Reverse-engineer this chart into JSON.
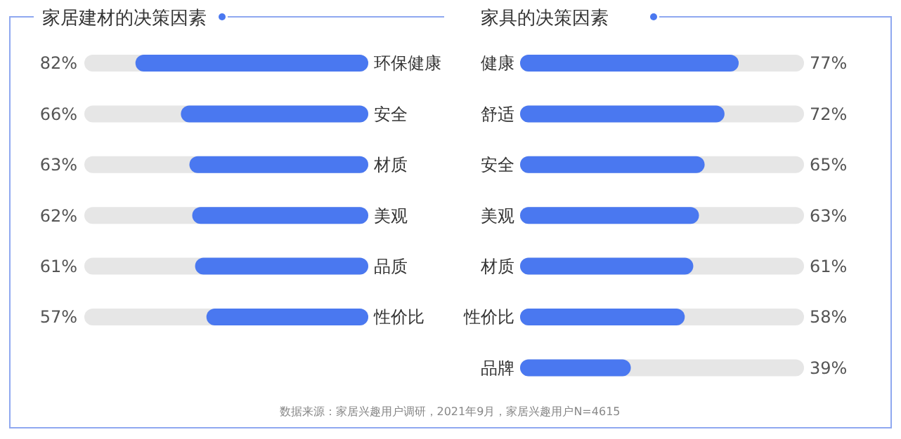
{
  "chart_data": [
    {
      "type": "bar",
      "orientation": "horizontal",
      "title": "家居建材的决策因素",
      "categories": [
        "环保健康",
        "安全",
        "材质",
        "美观",
        "品质",
        "性价比"
      ],
      "values": [
        82,
        66,
        63,
        62,
        61,
        57
      ],
      "value_labels": [
        "82%",
        "66%",
        "63%",
        "62%",
        "61%",
        "57%"
      ],
      "color": "#4a78f0",
      "xlim": [
        100,
        0
      ],
      "relative": false
    },
    {
      "type": "bar",
      "orientation": "horizontal",
      "title": "家具的决策因素",
      "categories": [
        "健康",
        "舒适",
        "安全",
        "美观",
        "材质",
        "性价比",
        "品牌"
      ],
      "values": [
        77,
        72,
        65,
        63,
        61,
        58,
        39
      ],
      "value_labels": [
        "77%",
        "72%",
        "65%",
        "63%",
        "61%",
        "58%",
        "39%"
      ],
      "color": "#4a78f0",
      "xlim": [
        0,
        100
      ],
      "relative": false,
      "annotations": [
        "数据来源：家居兴趣用户调研，2021年9月，家居兴趣用户N=4615"
      ]
    }
  ]
}
